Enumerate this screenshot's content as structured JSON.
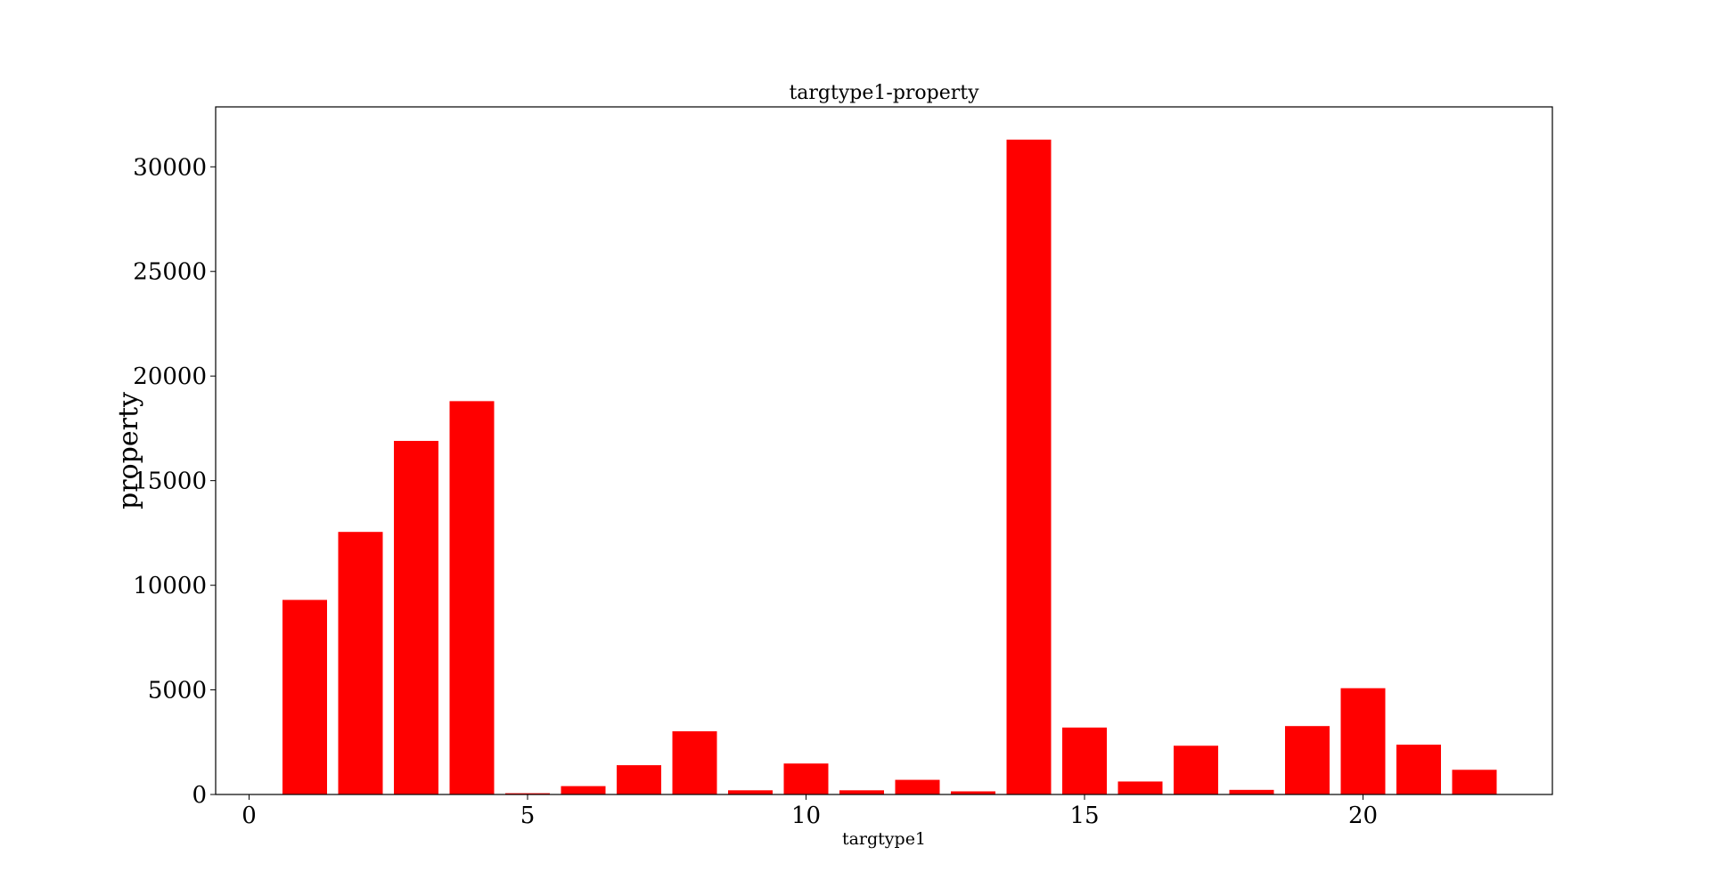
{
  "chart_data": {
    "type": "bar",
    "title": "targtype1-property",
    "xlabel": "targtype1",
    "ylabel": "property",
    "x": [
      1,
      2,
      3,
      4,
      5,
      6,
      7,
      8,
      9,
      10,
      11,
      12,
      13,
      14,
      15,
      16,
      17,
      18,
      19,
      20,
      21,
      22
    ],
    "values": [
      9300,
      12550,
      16900,
      18800,
      60,
      400,
      1400,
      3020,
      200,
      1480,
      200,
      700,
      150,
      31300,
      3200,
      620,
      2330,
      220,
      3270,
      5080,
      2380,
      1180
    ],
    "xlim": [
      -0.6,
      23.4
    ],
    "ylim": [
      0,
      32865
    ],
    "xticks": [
      0,
      5,
      10,
      15,
      20
    ],
    "yticks": [
      0,
      5000,
      10000,
      15000,
      20000,
      25000,
      30000
    ],
    "bar_color": "#ff0000",
    "grid": false,
    "legend": "none"
  }
}
